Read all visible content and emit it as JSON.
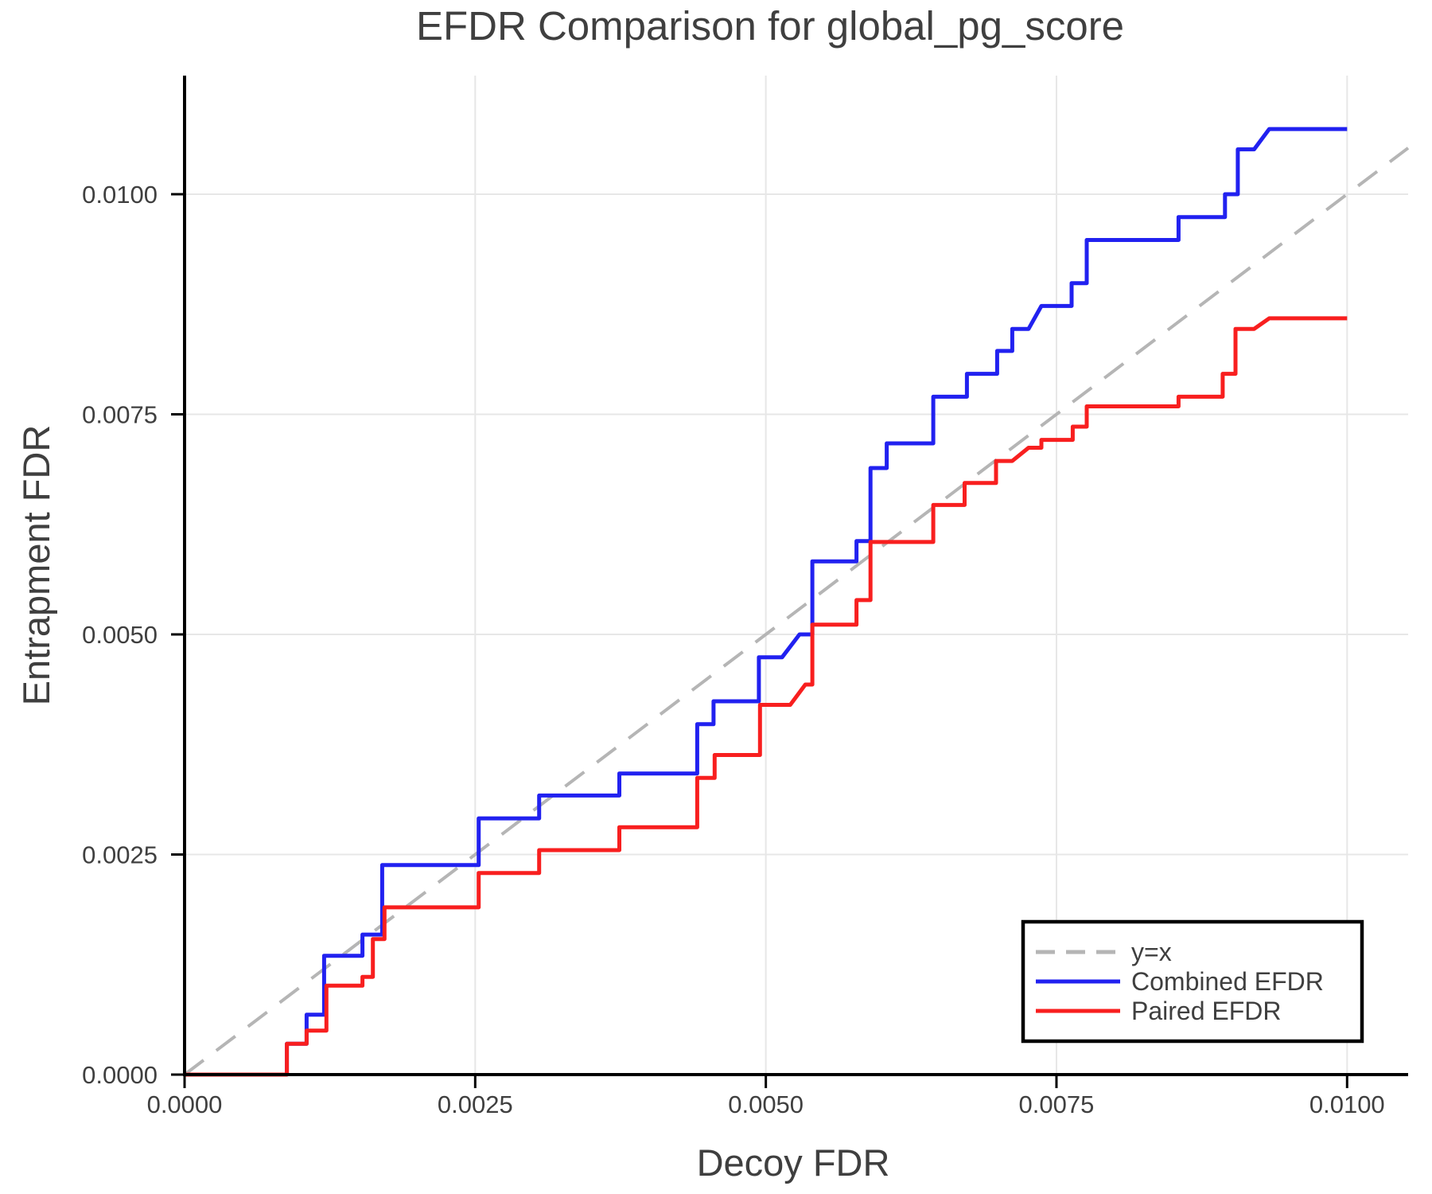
{
  "chart_data": {
    "type": "line",
    "title": "EFDR Comparison for global_pg_score",
    "xlabel": "Decoy FDR",
    "ylabel": "Entrapment FDR",
    "xlim": [
      0,
      0.010525
    ],
    "ylim": [
      0,
      0.011347
    ],
    "x_ticks": [
      0,
      0.0025,
      0.005,
      0.0075,
      0.01
    ],
    "y_ticks": [
      0,
      0.0025,
      0.005,
      0.0075,
      0.01
    ],
    "tick_decimals": 4,
    "grid": true,
    "identity_line": {
      "label": "y=x",
      "color": "#b5b5b5",
      "dashed": true
    },
    "series": [
      {
        "name": "Combined EFDR",
        "color": "#2121f0",
        "points": [
          [
            0,
            0
          ],
          [
            0.00088,
            0
          ],
          [
            0.00088,
            0.00035
          ],
          [
            0.00105,
            0.00035
          ],
          [
            0.00105,
            0.00068
          ],
          [
            0.0012,
            0.00068
          ],
          [
            0.0012,
            0.00135
          ],
          [
            0.00153,
            0.00135
          ],
          [
            0.00153,
            0.00159
          ],
          [
            0.0017,
            0.00159
          ],
          [
            0.0017,
            0.00238
          ],
          [
            0.00253,
            0.00238
          ],
          [
            0.00253,
            0.00291
          ],
          [
            0.00305,
            0.00291
          ],
          [
            0.00305,
            0.00317
          ],
          [
            0.00374,
            0.00317
          ],
          [
            0.00374,
            0.00342
          ],
          [
            0.00441,
            0.00342
          ],
          [
            0.00441,
            0.00398
          ],
          [
            0.00455,
            0.00398
          ],
          [
            0.00455,
            0.00424
          ],
          [
            0.00494,
            0.00424
          ],
          [
            0.00494,
            0.00474
          ],
          [
            0.00514,
            0.00474
          ],
          [
            0.00529,
            0.005
          ],
          [
            0.0054,
            0.005
          ],
          [
            0.0054,
            0.00583
          ],
          [
            0.00578,
            0.00583
          ],
          [
            0.00578,
            0.00606
          ],
          [
            0.0059,
            0.00606
          ],
          [
            0.0059,
            0.00689
          ],
          [
            0.00604,
            0.00689
          ],
          [
            0.00604,
            0.00717
          ],
          [
            0.00644,
            0.00717
          ],
          [
            0.00644,
            0.0077
          ],
          [
            0.00673,
            0.0077
          ],
          [
            0.00673,
            0.00796
          ],
          [
            0.00699,
            0.00796
          ],
          [
            0.00699,
            0.00822
          ],
          [
            0.00712,
            0.00822
          ],
          [
            0.00712,
            0.00847
          ],
          [
            0.00726,
            0.00847
          ],
          [
            0.00737,
            0.00873
          ],
          [
            0.00763,
            0.00873
          ],
          [
            0.00763,
            0.00899
          ],
          [
            0.00776,
            0.00899
          ],
          [
            0.00776,
            0.00948
          ],
          [
            0.00855,
            0.00948
          ],
          [
            0.00855,
            0.00974
          ],
          [
            0.00895,
            0.00974
          ],
          [
            0.00895,
            0.01
          ],
          [
            0.00906,
            0.01
          ],
          [
            0.00906,
            0.01051
          ],
          [
            0.0092,
            0.01051
          ],
          [
            0.00933,
            0.01074
          ],
          [
            0.01,
            0.01074
          ]
        ]
      },
      {
        "name": "Paired EFDR",
        "color": "#f81f1f",
        "points": [
          [
            0,
            0
          ],
          [
            0.00088,
            0
          ],
          [
            0.00088,
            0.00035
          ],
          [
            0.00105,
            0.00035
          ],
          [
            0.00105,
            0.0005
          ],
          [
            0.00122,
            0.0005
          ],
          [
            0.00122,
            0.00101
          ],
          [
            0.00153,
            0.00101
          ],
          [
            0.00153,
            0.00111
          ],
          [
            0.00162,
            0.00111
          ],
          [
            0.00162,
            0.00154
          ],
          [
            0.00172,
            0.00154
          ],
          [
            0.00172,
            0.0019
          ],
          [
            0.00253,
            0.0019
          ],
          [
            0.00253,
            0.00229
          ],
          [
            0.00305,
            0.00229
          ],
          [
            0.00305,
            0.00255
          ],
          [
            0.00374,
            0.00255
          ],
          [
            0.00374,
            0.00281
          ],
          [
            0.00441,
            0.00281
          ],
          [
            0.00441,
            0.00337
          ],
          [
            0.00456,
            0.00337
          ],
          [
            0.00456,
            0.00363
          ],
          [
            0.00495,
            0.00363
          ],
          [
            0.00495,
            0.0042
          ],
          [
            0.00521,
            0.0042
          ],
          [
            0.00534,
            0.00443
          ],
          [
            0.0054,
            0.00443
          ],
          [
            0.0054,
            0.00511
          ],
          [
            0.00578,
            0.00511
          ],
          [
            0.00578,
            0.00539
          ],
          [
            0.0059,
            0.00539
          ],
          [
            0.0059,
            0.00605
          ],
          [
            0.00644,
            0.00605
          ],
          [
            0.00644,
            0.00647
          ],
          [
            0.00671,
            0.00647
          ],
          [
            0.00671,
            0.00672
          ],
          [
            0.00698,
            0.00672
          ],
          [
            0.00698,
            0.00697
          ],
          [
            0.00712,
            0.00697
          ],
          [
            0.00726,
            0.00712
          ],
          [
            0.00737,
            0.00712
          ],
          [
            0.00737,
            0.00721
          ],
          [
            0.00764,
            0.00721
          ],
          [
            0.00764,
            0.00736
          ],
          [
            0.00776,
            0.00736
          ],
          [
            0.00776,
            0.00759
          ],
          [
            0.00855,
            0.00759
          ],
          [
            0.00855,
            0.0077
          ],
          [
            0.00893,
            0.0077
          ],
          [
            0.00893,
            0.00796
          ],
          [
            0.00904,
            0.00796
          ],
          [
            0.00904,
            0.00847
          ],
          [
            0.0092,
            0.00847
          ],
          [
            0.00933,
            0.00859
          ],
          [
            0.01,
            0.00859
          ]
        ]
      }
    ],
    "legend": {
      "position": "bottom-right",
      "items": [
        {
          "label": "y=x",
          "color": "#b5b5b5",
          "dashed": true
        },
        {
          "label": "Combined EFDR",
          "color": "#2121f0",
          "dashed": false
        },
        {
          "label": "Paired EFDR",
          "color": "#f81f1f",
          "dashed": false
        }
      ]
    }
  },
  "colors": {
    "text": "#3f3f3f",
    "grid": "#e7e7e7",
    "spine": "#000000",
    "background": "#ffffff"
  }
}
